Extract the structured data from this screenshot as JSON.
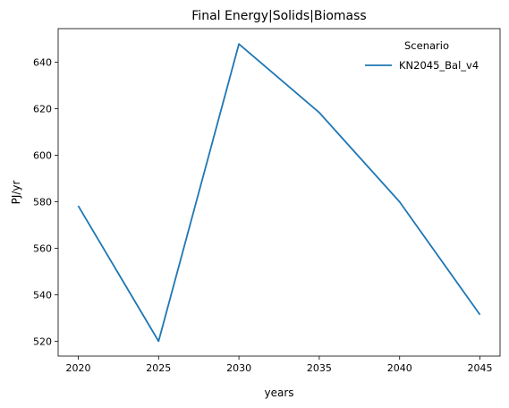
{
  "chart_data": {
    "type": "line",
    "title": "Final Energy|Solids|Biomass",
    "xlabel": "years",
    "ylabel": "PJ/yr",
    "x": [
      2020,
      2025,
      2030,
      2035,
      2040,
      2045
    ],
    "xticks": [
      "2020",
      "2025",
      "2030",
      "2035",
      "2040",
      "2045"
    ],
    "yticks": [
      "520",
      "540",
      "560",
      "580",
      "600",
      "620",
      "640"
    ],
    "xlim": [
      2018.75,
      2046.25
    ],
    "ylim": [
      513.6,
      654.4
    ],
    "series": [
      {
        "name": "KN2045_Bal_v4",
        "values": [
          578.2,
          520.0,
          647.8,
          618.3,
          579.9,
          531.4
        ],
        "color": "#1f77b4"
      }
    ],
    "legend": {
      "title": "Scenario",
      "placement": "top-right"
    },
    "grid": false
  }
}
